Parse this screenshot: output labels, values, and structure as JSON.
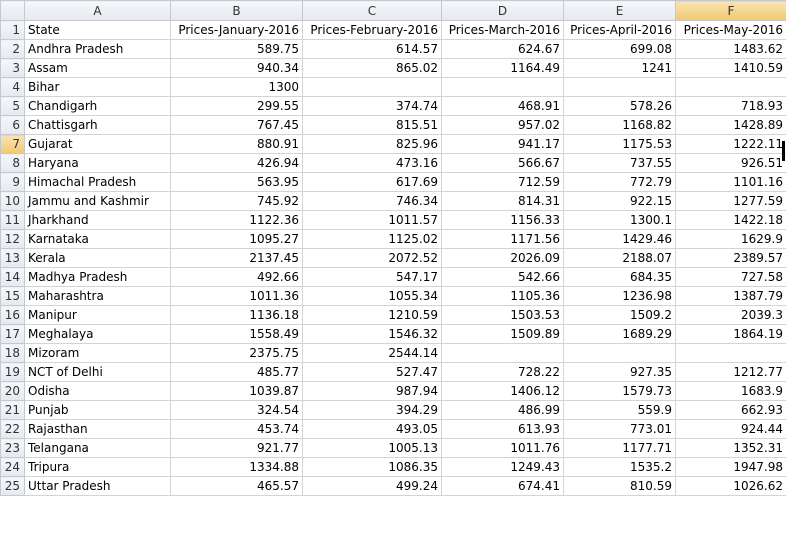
{
  "columns": [
    "A",
    "B",
    "C",
    "D",
    "E",
    "F"
  ],
  "headers": [
    "State",
    "Prices-January-2016",
    "Prices-February-2016",
    "Prices-March-2016",
    "Prices-April-2016",
    "Prices-May-2016"
  ],
  "rows": [
    {
      "num": "2",
      "cells": [
        "Andhra Pradesh",
        "589.75",
        "614.57",
        "624.67",
        "699.08",
        "1483.62"
      ]
    },
    {
      "num": "3",
      "cells": [
        "Assam",
        "940.34",
        "865.02",
        "1164.49",
        "1241",
        "1410.59"
      ]
    },
    {
      "num": "4",
      "cells": [
        "Bihar",
        "1300",
        "",
        "",
        "",
        ""
      ]
    },
    {
      "num": "5",
      "cells": [
        "Chandigarh",
        "299.55",
        "374.74",
        "468.91",
        "578.26",
        "718.93"
      ]
    },
    {
      "num": "6",
      "cells": [
        "Chattisgarh",
        "767.45",
        "815.51",
        "957.02",
        "1168.82",
        "1428.89"
      ]
    },
    {
      "num": "7",
      "cells": [
        "Gujarat",
        "880.91",
        "825.96",
        "941.17",
        "1175.53",
        "1222.11"
      ]
    },
    {
      "num": "8",
      "cells": [
        "Haryana",
        "426.94",
        "473.16",
        "566.67",
        "737.55",
        "926.51"
      ]
    },
    {
      "num": "9",
      "cells": [
        "Himachal Pradesh",
        "563.95",
        "617.69",
        "712.59",
        "772.79",
        "1101.16"
      ]
    },
    {
      "num": "10",
      "cells": [
        "Jammu and Kashmir",
        "745.92",
        "746.34",
        "814.31",
        "922.15",
        "1277.59"
      ]
    },
    {
      "num": "11",
      "cells": [
        "Jharkhand",
        "1122.36",
        "1011.57",
        "1156.33",
        "1300.1",
        "1422.18"
      ]
    },
    {
      "num": "12",
      "cells": [
        "Karnataka",
        "1095.27",
        "1125.02",
        "1171.56",
        "1429.46",
        "1629.9"
      ]
    },
    {
      "num": "13",
      "cells": [
        "Kerala",
        "2137.45",
        "2072.52",
        "2026.09",
        "2188.07",
        "2389.57"
      ]
    },
    {
      "num": "14",
      "cells": [
        "Madhya Pradesh",
        "492.66",
        "547.17",
        "542.66",
        "684.35",
        "727.58"
      ]
    },
    {
      "num": "15",
      "cells": [
        "Maharashtra",
        "1011.36",
        "1055.34",
        "1105.36",
        "1236.98",
        "1387.79"
      ]
    },
    {
      "num": "16",
      "cells": [
        "Manipur",
        "1136.18",
        "1210.59",
        "1503.53",
        "1509.2",
        "2039.3"
      ]
    },
    {
      "num": "17",
      "cells": [
        "Meghalaya",
        "1558.49",
        "1546.32",
        "1509.89",
        "1689.29",
        "1864.19"
      ]
    },
    {
      "num": "18",
      "cells": [
        "Mizoram",
        "2375.75",
        "2544.14",
        "",
        "",
        ""
      ]
    },
    {
      "num": "19",
      "cells": [
        "NCT of Delhi",
        "485.77",
        "527.47",
        "728.22",
        "927.35",
        "1212.77"
      ]
    },
    {
      "num": "20",
      "cells": [
        "Odisha",
        "1039.87",
        "987.94",
        "1406.12",
        "1579.73",
        "1683.9"
      ]
    },
    {
      "num": "21",
      "cells": [
        "Punjab",
        "324.54",
        "394.29",
        "486.99",
        "559.9",
        "662.93"
      ]
    },
    {
      "num": "22",
      "cells": [
        "Rajasthan",
        "453.74",
        "493.05",
        "613.93",
        "773.01",
        "924.44"
      ]
    },
    {
      "num": "23",
      "cells": [
        "Telangana",
        "921.77",
        "1005.13",
        "1011.76",
        "1177.71",
        "1352.31"
      ]
    },
    {
      "num": "24",
      "cells": [
        "Tripura",
        "1334.88",
        "1086.35",
        "1249.43",
        "1535.2",
        "1947.98"
      ]
    },
    {
      "num": "25",
      "cells": [
        "Uttar Pradesh",
        "465.57",
        "499.24",
        "674.41",
        "810.59",
        "1026.62"
      ]
    }
  ],
  "header_row_num": "1",
  "active_row": "7",
  "active_col": "F"
}
